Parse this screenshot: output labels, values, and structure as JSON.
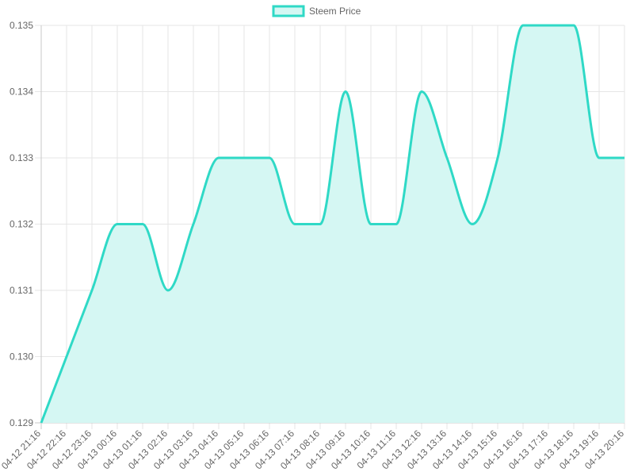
{
  "chart_data": {
    "type": "area",
    "x": [
      "04-12 21:16",
      "04-12 22:16",
      "04-12 23:16",
      "04-13 00:16",
      "04-13 01:16",
      "04-13 02:16",
      "04-13 03:16",
      "04-13 04:16",
      "04-13 05:16",
      "04-13 06:16",
      "04-13 07:16",
      "04-13 08:16",
      "04-13 09:16",
      "04-13 10:16",
      "04-13 11:16",
      "04-13 12:16",
      "04-13 13:16",
      "04-13 14:16",
      "04-13 15:16",
      "04-13 16:16",
      "04-13 17:16",
      "04-13 18:16",
      "04-13 19:16",
      "04-13 20:16"
    ],
    "series": [
      {
        "name": "Steem Price",
        "values": [
          0.129,
          0.13,
          0.131,
          0.132,
          0.132,
          0.131,
          0.132,
          0.133,
          0.133,
          0.133,
          0.132,
          0.132,
          0.134,
          0.132,
          0.132,
          0.134,
          0.133,
          0.132,
          0.133,
          0.135,
          0.135,
          0.135,
          0.133,
          0.133
        ]
      }
    ],
    "ylim": [
      0.129,
      0.135
    ],
    "y_ticks": [
      "0.129",
      "0.130",
      "0.131",
      "0.132",
      "0.133",
      "0.134",
      "0.135"
    ],
    "grid": true,
    "legend_position": "top-center",
    "colors": {
      "line": "#2fd9c6",
      "fill": "#d5f7f3",
      "grid": "#e6e6e6",
      "axis": "#c8c8c8",
      "text": "#666666"
    }
  }
}
